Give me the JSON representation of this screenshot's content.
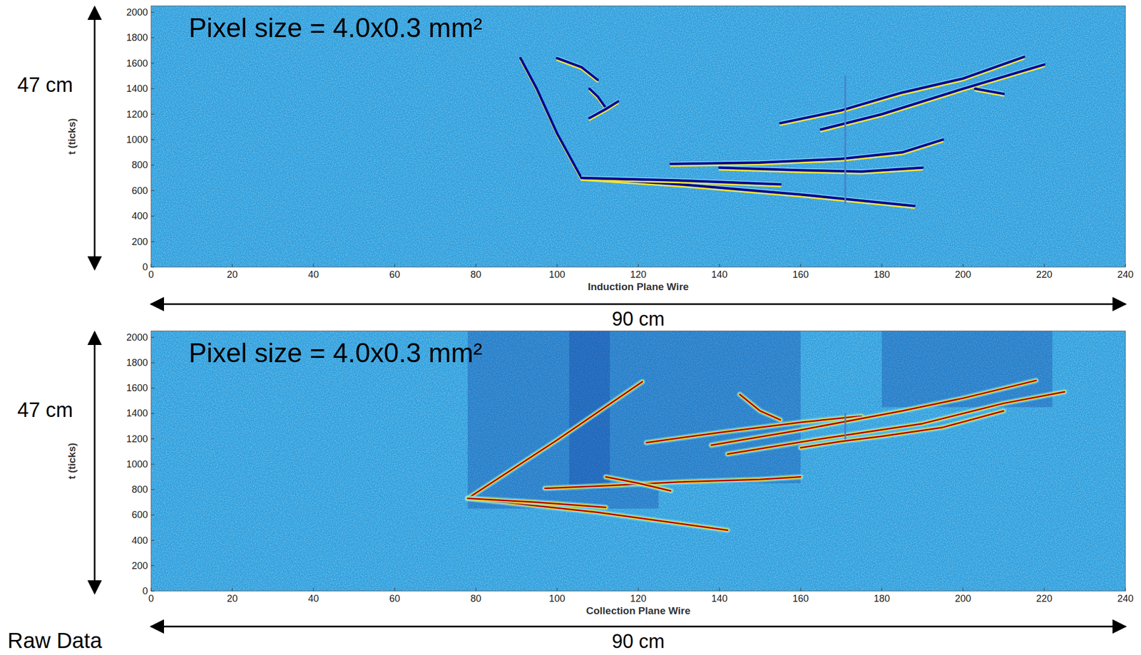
{
  "chart_data": [
    {
      "type": "line",
      "x_label": "Induction Plane Wire",
      "y_label": "t (ticks)",
      "annotations": [
        "Pixel size = 4.0x0.3 mm²",
        "47 cm",
        "90 cm"
      ],
      "xlim": [
        0,
        240
      ],
      "ylim": [
        0,
        2050
      ],
      "xticks": [
        0,
        20,
        40,
        60,
        80,
        100,
        120,
        140,
        160,
        180,
        200,
        220,
        240
      ],
      "yticks": [
        0,
        200,
        400,
        600,
        800,
        1000,
        1200,
        1400,
        1600,
        1800,
        2000
      ],
      "dark_regions": [],
      "series": [
        {
          "color": "#00008f",
          "x": [
            91,
            95,
            100,
            106
          ],
          "values": [
            1640,
            1400,
            1050,
            700
          ]
        },
        {
          "color": "#00008f",
          "x": [
            106,
            130,
            160,
            188
          ],
          "values": [
            700,
            650,
            570,
            480
          ]
        },
        {
          "color": "#00008f",
          "x": [
            106,
            130,
            155
          ],
          "values": [
            700,
            680,
            650
          ]
        },
        {
          "color": "#00008f",
          "x": [
            155,
            170,
            185,
            200,
            215
          ],
          "values": [
            1130,
            1230,
            1370,
            1480,
            1650
          ]
        },
        {
          "color": "#00008f",
          "x": [
            165,
            180,
            200,
            220
          ],
          "values": [
            1080,
            1200,
            1400,
            1590
          ]
        },
        {
          "color": "#00008f",
          "x": [
            128,
            150,
            170,
            185,
            195
          ],
          "values": [
            810,
            820,
            850,
            900,
            1000
          ]
        },
        {
          "color": "#00008f",
          "x": [
            100,
            106,
            110
          ],
          "values": [
            1640,
            1570,
            1470
          ]
        },
        {
          "color": "#00008f",
          "x": [
            108,
            110,
            112
          ],
          "values": [
            1400,
            1340,
            1250
          ]
        },
        {
          "color": "#00008f",
          "x": [
            108,
            112,
            115
          ],
          "values": [
            1170,
            1240,
            1300
          ]
        },
        {
          "color": "#00008f",
          "x": [
            140,
            160,
            175,
            190
          ],
          "values": [
            780,
            760,
            750,
            780
          ]
        },
        {
          "color": "#00008f",
          "x": [
            203,
            210
          ],
          "values": [
            1400,
            1360
          ]
        },
        {
          "color": "#4a7fc8",
          "x": [
            171,
            171
          ],
          "values": [
            500,
            1500
          ]
        }
      ]
    },
    {
      "type": "line",
      "x_label": "Collection Plane Wire",
      "y_label": "t (ticks)",
      "annotations": [
        "Pixel size = 4.0x0.3 mm²",
        "47 cm",
        "90 cm",
        "Raw Data"
      ],
      "xlim": [
        0,
        240
      ],
      "ylim": [
        0,
        2050
      ],
      "xticks": [
        0,
        20,
        40,
        60,
        80,
        100,
        120,
        140,
        160,
        180,
        200,
        220,
        240
      ],
      "yticks": [
        0,
        200,
        400,
        600,
        800,
        1000,
        1200,
        1400,
        1600,
        1800,
        2000
      ],
      "dark_regions": [
        {
          "x": [
            78,
            125
          ],
          "y": [
            650,
            2050
          ]
        },
        {
          "x": [
            103,
            113
          ],
          "y": [
            800,
            2050
          ]
        },
        {
          "x": [
            125,
            160
          ],
          "y": [
            850,
            2050
          ]
        },
        {
          "x": [
            180,
            222
          ],
          "y": [
            1450,
            2050
          ]
        }
      ],
      "series": [
        {
          "color": "#b00000",
          "x": [
            78,
            100,
            121
          ],
          "values": [
            730,
            1190,
            1650
          ]
        },
        {
          "color": "#b00000",
          "x": [
            78,
            110,
            142
          ],
          "values": [
            730,
            620,
            480
          ]
        },
        {
          "color": "#b00000",
          "x": [
            78,
            95,
            112
          ],
          "values": [
            730,
            700,
            660
          ]
        },
        {
          "color": "#b00000",
          "x": [
            97,
            112,
            130,
            150,
            160
          ],
          "values": [
            810,
            830,
            860,
            880,
            900
          ]
        },
        {
          "color": "#b00000",
          "x": [
            122,
            140,
            160,
            175
          ],
          "values": [
            1170,
            1250,
            1330,
            1380
          ]
        },
        {
          "color": "#b00000",
          "x": [
            138,
            160,
            185,
            200,
            218
          ],
          "values": [
            1150,
            1270,
            1420,
            1520,
            1660
          ]
        },
        {
          "color": "#b00000",
          "x": [
            142,
            165,
            190,
            210,
            225
          ],
          "values": [
            1080,
            1200,
            1320,
            1480,
            1570
          ]
        },
        {
          "color": "#b00000",
          "x": [
            145,
            150,
            155
          ],
          "values": [
            1550,
            1420,
            1350
          ]
        },
        {
          "color": "#b00000",
          "x": [
            112,
            120,
            128
          ],
          "values": [
            900,
            850,
            790
          ]
        },
        {
          "color": "#b00000",
          "x": [
            160,
            170,
            180,
            195,
            210
          ],
          "values": [
            1130,
            1180,
            1220,
            1290,
            1420
          ]
        },
        {
          "color": "#4a7fc8",
          "x": [
            171,
            171
          ],
          "values": [
            1200,
            1400
          ]
        }
      ]
    }
  ]
}
